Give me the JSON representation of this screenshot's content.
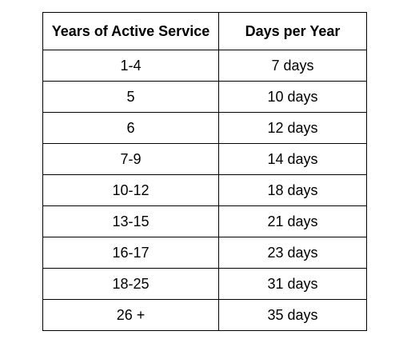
{
  "table": {
    "headers": {
      "years": "Years of Active Service",
      "days": "Days per Year"
    },
    "rows": [
      {
        "years": "1-4",
        "days": "7 days"
      },
      {
        "years": "5",
        "days": "10 days"
      },
      {
        "years": "6",
        "days": "12 days"
      },
      {
        "years": "7-9",
        "days": "14 days"
      },
      {
        "years": "10-12",
        "days": "18 days"
      },
      {
        "years": "13-15",
        "days": "21 days"
      },
      {
        "years": "16-17",
        "days": "23 days"
      },
      {
        "years": "18-25",
        "days": "31 days"
      },
      {
        "years": "26 +",
        "days": "35 days"
      }
    ]
  }
}
